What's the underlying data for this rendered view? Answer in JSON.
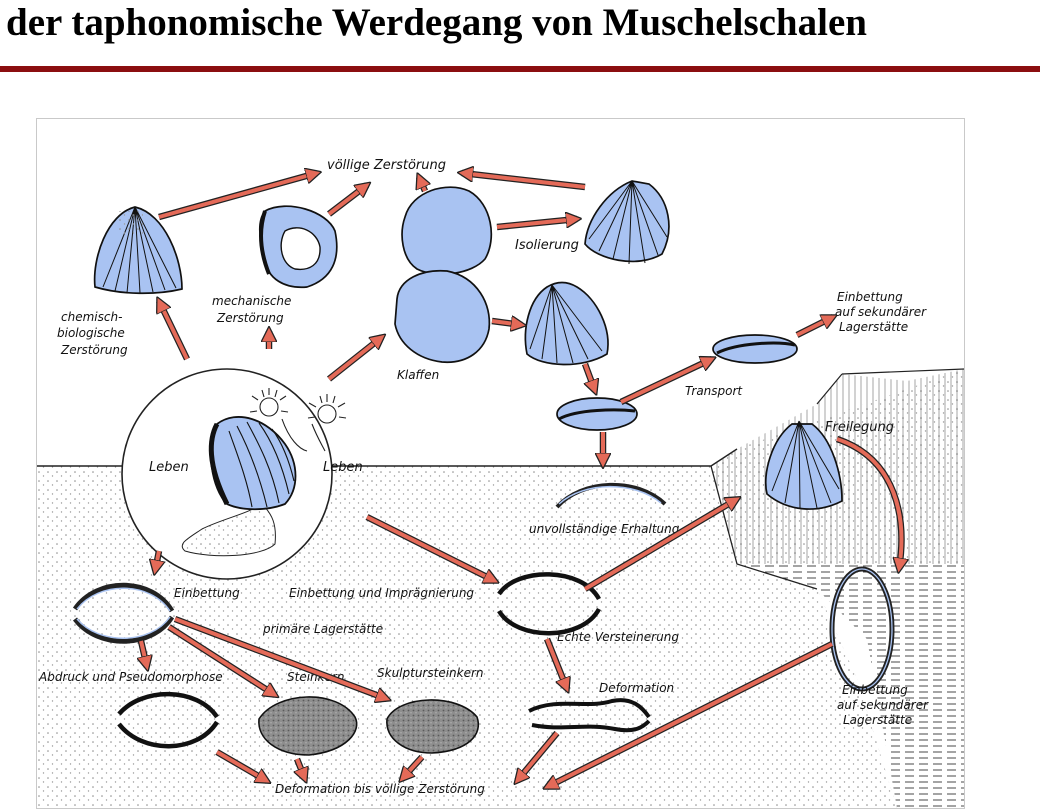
{
  "title": "der taphonomische Werdegang von Muschelschalen",
  "colors": {
    "accent_rule": "#8b0e10",
    "shell_fill": "#a9c3f2",
    "arrow": "#e46a58",
    "ink": "#111111",
    "grain": "#9a9a9a"
  },
  "diagram": {
    "labels": {
      "voellige_zerstoerung": "völlige Zerstörung",
      "chemisch_1": "chemisch-",
      "chemisch_2": "biologische",
      "chemisch_3": "Zerstörung",
      "mechanisch_1": "mechanische",
      "mechanisch_2": "Zerstörung",
      "isolierung": "Isolierung",
      "klaffen": "Klaffen",
      "einbettung_sek_top_1": "Einbettung",
      "einbettung_sek_top_2": "auf sekundärer",
      "einbettung_sek_top_3": "Lagerstätte",
      "transport": "Transport",
      "freilegung": "Freilegung",
      "leben_left": "Leben",
      "leben_right": "Leben",
      "unvollstaendige": "unvollständige Erhaltung",
      "einbettung": "Einbettung",
      "einbettung_impraegnierung": "Einbettung und Imprägnierung",
      "primaere_lagerstaette": "primäre Lagerstätte",
      "echte_versteinerung": "Echte Versteinerung",
      "abdruck": "Abdruck und Pseudomorphose",
      "steinkern": "Steinkern",
      "skulptursteinkern": "Skulptursteinkern",
      "deformation": "Deformation",
      "einbettung_sek_bottom_1": "Einbettung",
      "einbettung_sek_bottom_2": "auf sekundärer",
      "einbettung_sek_bottom_3": "Lagerstätte",
      "deformation_bis": "Deformation bis völlige Zerstörung"
    }
  }
}
